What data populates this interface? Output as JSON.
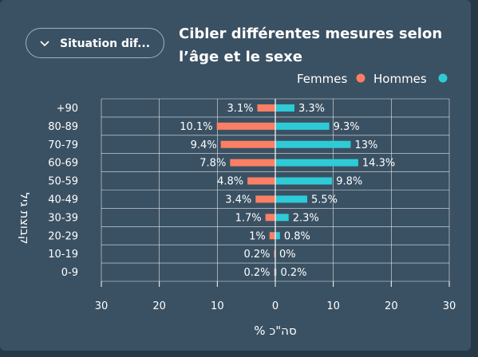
{
  "controls": {
    "dropdown_label": "Situation dif..."
  },
  "colors": {
    "female": "#fa7f64",
    "male": "#2ecbd6"
  },
  "chart_data": {
    "type": "bar",
    "orientation": "horizontal",
    "title": "Cibler différentes mesures selon l’âge et le sexe",
    "xlabel": "% סה\"כ",
    "ylabel": "קבוצת גיל",
    "xlim": [
      -30,
      30
    ],
    "xticks": [
      -30,
      -20,
      -10,
      0,
      10,
      20,
      30
    ],
    "xtick_labels": [
      "30",
      "20",
      "10",
      "0",
      "10",
      "20",
      "30"
    ],
    "legend_position": "top-right",
    "categories": [
      "+90",
      "80-89",
      "70-79",
      "60-69",
      "50-59",
      "40-49",
      "30-39",
      "20-29",
      "10-19",
      "0-9"
    ],
    "series": [
      {
        "name": "Femmes",
        "side": "left",
        "values": [
          3.1,
          10.1,
          9.4,
          7.8,
          4.8,
          3.4,
          1.7,
          1,
          0.2,
          0.2
        ],
        "labels": [
          "3.1%",
          "10.1%",
          "9.4%",
          "7.8%",
          "4.8%",
          "3.4%",
          "1.7%",
          "1%",
          "0.2%",
          "0.2%"
        ]
      },
      {
        "name": "Hommes",
        "side": "right",
        "values": [
          3.3,
          9.3,
          13,
          14.3,
          9.8,
          5.5,
          2.3,
          0.8,
          0,
          0.2
        ],
        "labels": [
          "3.3%",
          "9.3%",
          "13%",
          "14.3%",
          "9.8%",
          "5.5%",
          "2.3%",
          "0.8%",
          "0%",
          "0.2%"
        ]
      }
    ]
  }
}
